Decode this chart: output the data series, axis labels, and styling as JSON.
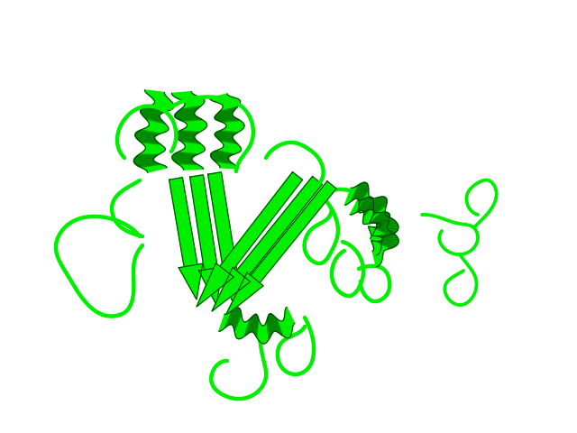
{
  "background_color": "#ffffff",
  "gc": "#00ee00",
  "gd": "#004400",
  "gm": "#007700",
  "figsize": [
    6.4,
    4.8
  ],
  "dpi": 100
}
